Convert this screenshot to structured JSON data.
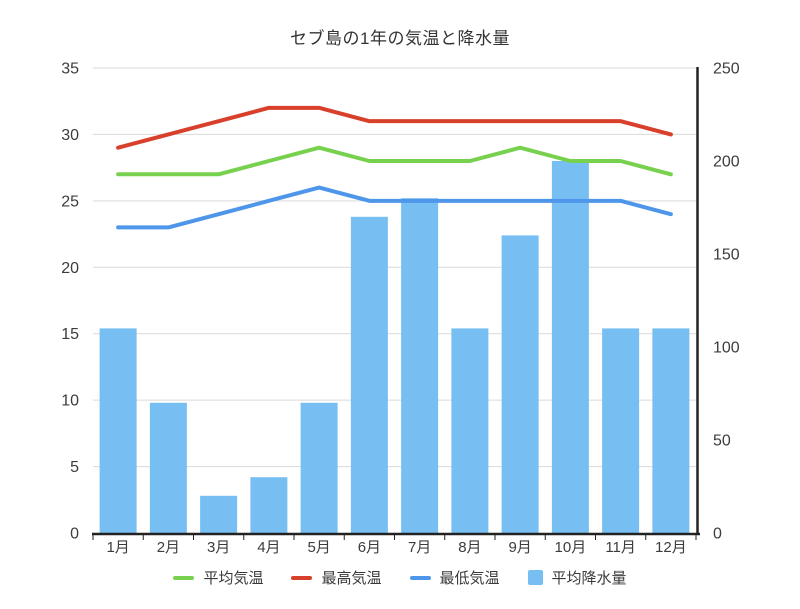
{
  "chart_data": {
    "type": "combo",
    "title": "セブ島の1年の気温と降水量",
    "categories": [
      "1月",
      "2月",
      "3月",
      "4月",
      "5月",
      "6月",
      "7月",
      "8月",
      "9月",
      "10月",
      "11月",
      "12月"
    ],
    "series": [
      {
        "key": "avg-temp",
        "name": "平均気温",
        "type": "line",
        "axis": "left",
        "color": "#78D14E",
        "values": [
          27,
          27,
          27,
          28,
          29,
          28,
          28,
          28,
          29,
          28,
          28,
          27
        ]
      },
      {
        "key": "max-temp",
        "name": "最高気温",
        "type": "line",
        "axis": "left",
        "color": "#D8402C",
        "values": [
          29,
          30,
          31,
          32,
          32,
          31,
          31,
          31,
          31,
          31,
          31,
          30
        ]
      },
      {
        "key": "min-temp",
        "name": "最低気温",
        "type": "line",
        "axis": "left",
        "color": "#4E96E9",
        "values": [
          23,
          23,
          24,
          25,
          26,
          25,
          25,
          25,
          25,
          25,
          25,
          24
        ]
      },
      {
        "key": "precipitation",
        "name": "平均降水量",
        "type": "bar",
        "axis": "right",
        "color": "#77BFF2",
        "values": [
          110,
          70,
          20,
          30,
          70,
          170,
          180,
          110,
          160,
          200,
          110,
          110
        ]
      }
    ],
    "axes": {
      "left": {
        "min": 0,
        "max": 35,
        "step": 5,
        "ticks": [
          0,
          5,
          10,
          15,
          20,
          25,
          30,
          35
        ]
      },
      "right": {
        "min": 0,
        "max": 250,
        "step": 50,
        "ticks": [
          0,
          50,
          100,
          150,
          200,
          250
        ]
      }
    },
    "grid": "horizontal gridlines aligned to left-axis steps",
    "legend_position": "bottom"
  },
  "colors": {
    "background": "#FFFFFF",
    "gridline": "#DADADA",
    "axis_line": "#222222",
    "tick_text": "#3C3C3C",
    "title_text": "#333333"
  }
}
